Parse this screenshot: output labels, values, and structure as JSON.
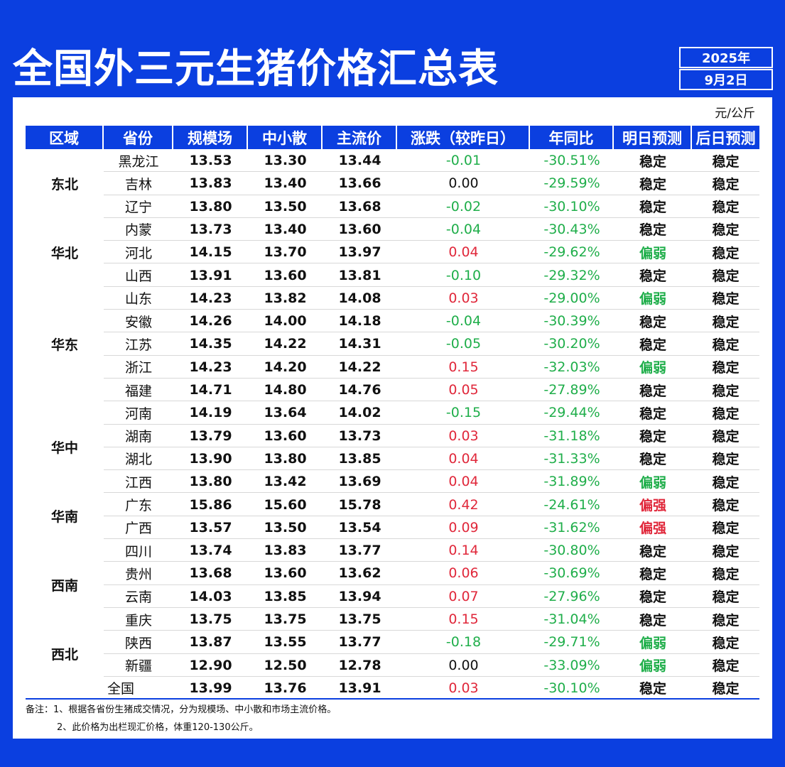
{
  "header": {
    "title": "全国外三元生猪价格汇总表",
    "year": "2025年",
    "date": "9月2日"
  },
  "table": {
    "unit": "元/公斤",
    "columns": [
      "区域",
      "省份",
      "规模场",
      "中小散",
      "主流价",
      "涨跌（较昨日）",
      "年同比",
      "明日预测",
      "后日预测"
    ],
    "colors": {
      "up": "#e0273a",
      "down": "#1fae4a",
      "neutral": "#111111",
      "header_bg": "#0b3fe0"
    },
    "regions": [
      {
        "name": "东北",
        "first": 0,
        "span": 3
      },
      {
        "name": "华北",
        "first": 3,
        "span": 3
      },
      {
        "name": "华东",
        "first": 6,
        "span": 5
      },
      {
        "name": "华中",
        "first": 11,
        "span": 4
      },
      {
        "name": "华南",
        "first": 15,
        "span": 2
      },
      {
        "name": "西南",
        "first": 17,
        "span": 4
      },
      {
        "name": "西北",
        "first": 21,
        "span": 2
      }
    ],
    "rows": [
      {
        "province": "黑龙江",
        "large": "13.53",
        "small": "13.30",
        "main": "13.44",
        "change": "-0.01",
        "yoy": "-30.51%",
        "tomorrow": "稳定",
        "after": "稳定"
      },
      {
        "province": "吉林",
        "large": "13.83",
        "small": "13.40",
        "main": "13.66",
        "change": "0.00",
        "yoy": "-29.59%",
        "tomorrow": "稳定",
        "after": "稳定"
      },
      {
        "province": "辽宁",
        "large": "13.80",
        "small": "13.50",
        "main": "13.68",
        "change": "-0.02",
        "yoy": "-30.10%",
        "tomorrow": "稳定",
        "after": "稳定"
      },
      {
        "province": "内蒙",
        "large": "13.73",
        "small": "13.40",
        "main": "13.60",
        "change": "-0.04",
        "yoy": "-30.43%",
        "tomorrow": "稳定",
        "after": "稳定"
      },
      {
        "province": "河北",
        "large": "14.15",
        "small": "13.70",
        "main": "13.97",
        "change": "0.04",
        "yoy": "-29.62%",
        "tomorrow": "偏弱",
        "after": "稳定"
      },
      {
        "province": "山西",
        "large": "13.91",
        "small": "13.60",
        "main": "13.81",
        "change": "-0.10",
        "yoy": "-29.32%",
        "tomorrow": "稳定",
        "after": "稳定"
      },
      {
        "province": "山东",
        "large": "14.23",
        "small": "13.82",
        "main": "14.08",
        "change": "0.03",
        "yoy": "-29.00%",
        "tomorrow": "偏弱",
        "after": "稳定"
      },
      {
        "province": "安徽",
        "large": "14.26",
        "small": "14.00",
        "main": "14.18",
        "change": "-0.04",
        "yoy": "-30.39%",
        "tomorrow": "稳定",
        "after": "稳定"
      },
      {
        "province": "江苏",
        "large": "14.35",
        "small": "14.22",
        "main": "14.31",
        "change": "-0.05",
        "yoy": "-30.20%",
        "tomorrow": "稳定",
        "after": "稳定"
      },
      {
        "province": "浙江",
        "large": "14.23",
        "small": "14.20",
        "main": "14.22",
        "change": "0.15",
        "yoy": "-32.03%",
        "tomorrow": "偏弱",
        "after": "稳定"
      },
      {
        "province": "福建",
        "large": "14.71",
        "small": "14.80",
        "main": "14.76",
        "change": "0.05",
        "yoy": "-27.89%",
        "tomorrow": "稳定",
        "after": "稳定"
      },
      {
        "province": "河南",
        "large": "14.19",
        "small": "13.64",
        "main": "14.02",
        "change": "-0.15",
        "yoy": "-29.44%",
        "tomorrow": "稳定",
        "after": "稳定"
      },
      {
        "province": "湖南",
        "large": "13.79",
        "small": "13.60",
        "main": "13.73",
        "change": "0.03",
        "yoy": "-31.18%",
        "tomorrow": "稳定",
        "after": "稳定"
      },
      {
        "province": "湖北",
        "large": "13.90",
        "small": "13.80",
        "main": "13.85",
        "change": "0.04",
        "yoy": "-31.33%",
        "tomorrow": "稳定",
        "after": "稳定"
      },
      {
        "province": "江西",
        "large": "13.80",
        "small": "13.42",
        "main": "13.69",
        "change": "0.04",
        "yoy": "-31.89%",
        "tomorrow": "偏弱",
        "after": "稳定"
      },
      {
        "province": "广东",
        "large": "15.86",
        "small": "15.60",
        "main": "15.78",
        "change": "0.42",
        "yoy": "-24.61%",
        "tomorrow": "偏强",
        "after": "稳定"
      },
      {
        "province": "广西",
        "large": "13.57",
        "small": "13.50",
        "main": "13.54",
        "change": "0.09",
        "yoy": "-31.62%",
        "tomorrow": "偏强",
        "after": "稳定"
      },
      {
        "province": "四川",
        "large": "13.74",
        "small": "13.83",
        "main": "13.77",
        "change": "0.14",
        "yoy": "-30.80%",
        "tomorrow": "稳定",
        "after": "稳定"
      },
      {
        "province": "贵州",
        "large": "13.68",
        "small": "13.60",
        "main": "13.62",
        "change": "0.06",
        "yoy": "-30.69%",
        "tomorrow": "稳定",
        "after": "稳定"
      },
      {
        "province": "云南",
        "large": "14.03",
        "small": "13.85",
        "main": "13.94",
        "change": "0.07",
        "yoy": "-27.96%",
        "tomorrow": "稳定",
        "after": "稳定"
      },
      {
        "province": "重庆",
        "large": "13.75",
        "small": "13.75",
        "main": "13.75",
        "change": "0.15",
        "yoy": "-31.04%",
        "tomorrow": "稳定",
        "after": "稳定"
      },
      {
        "province": "陕西",
        "large": "13.87",
        "small": "13.55",
        "main": "13.77",
        "change": "-0.18",
        "yoy": "-29.71%",
        "tomorrow": "偏弱",
        "after": "稳定"
      },
      {
        "province": "新疆",
        "large": "12.90",
        "small": "12.50",
        "main": "12.78",
        "change": "0.00",
        "yoy": "-33.09%",
        "tomorrow": "偏弱",
        "after": "稳定"
      }
    ],
    "total": {
      "label": "全国",
      "large": "13.99",
      "small": "13.76",
      "main": "13.91",
      "change": "0.03",
      "yoy": "-30.10%",
      "tomorrow": "稳定",
      "after": "稳定"
    }
  },
  "notes": {
    "line1": "备注：1、根据各省份生猪成交情况，分为规模场、中小散和市场主流价格。",
    "line2": "2、此价格为出栏现汇价格，体重120-130公斤。"
  }
}
